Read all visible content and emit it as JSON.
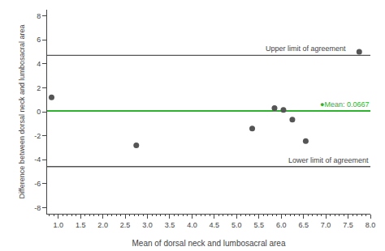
{
  "chart_data": {
    "type": "scatter",
    "x": [
      0.85,
      2.75,
      5.35,
      5.85,
      6.05,
      6.25,
      6.55,
      7.75
    ],
    "values": [
      1.2,
      -2.8,
      -1.4,
      0.3,
      0.15,
      -0.65,
      -2.45,
      5.0
    ],
    "color": "#555555",
    "marker": "circle",
    "xlabel": "Mean of dorsal neck and lumbosacral area",
    "ylabel": "Difference between dorsal neck and lumbosacral area",
    "xlim": [
      0.75,
      8.0
    ],
    "ylim": [
      -8.5,
      8.5
    ],
    "xticks": [
      {
        "value": 1.0,
        "label": "1.0"
      },
      1.5,
      {
        "value": 2.0,
        "label": "2.0"
      },
      2.5,
      {
        "value": 3.0,
        "label": "3.0"
      },
      3.5,
      {
        "value": 4.0,
        "label": "4.0"
      },
      4.5,
      {
        "value": 5.0,
        "label": "5.0"
      },
      5.5,
      {
        "value": 6.0,
        "label": "6.0"
      },
      6.5,
      {
        "value": 7.0,
        "label": "7.0"
      },
      7.5,
      {
        "value": 8.0,
        "label": "8.0"
      }
    ],
    "yticks": [
      -8,
      -6,
      -4,
      -2,
      0,
      2,
      4,
      6,
      8
    ],
    "grid": false,
    "reference_lines": [
      {
        "value": 0.0667,
        "label": "●Mean: 0.0667",
        "color": "#2db32d"
      },
      {
        "value": 4.7,
        "label": "Upper limit of agreement",
        "color": "#555555"
      },
      {
        "value": -4.57,
        "label": "Lower limit of agreement",
        "color": "#555555"
      }
    ]
  }
}
